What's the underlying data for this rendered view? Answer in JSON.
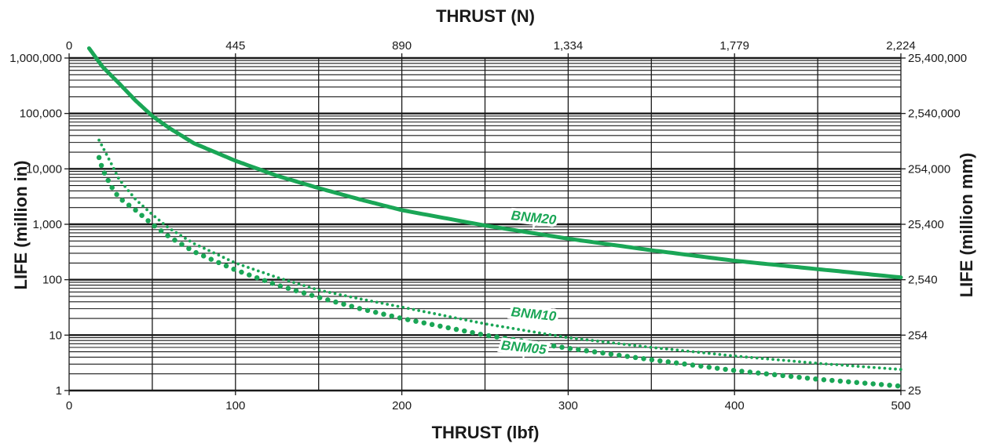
{
  "chart_data": {
    "type": "line",
    "title": "",
    "x_top_label": "THRUST (N)",
    "x_bottom_label": "THRUST (lbf)",
    "y_left_label": "LIFE (million in)",
    "y_right_label": "LIFE (million mm)",
    "x_range_lbf": [
      0,
      500
    ],
    "x_bottom_ticks": [
      {
        "value": 0,
        "label": "0"
      },
      {
        "value": 100,
        "label": "100"
      },
      {
        "value": 200,
        "label": "200"
      },
      {
        "value": 300,
        "label": "300"
      },
      {
        "value": 400,
        "label": "400"
      },
      {
        "value": 500,
        "label": "500"
      }
    ],
    "x_top_ticks": [
      {
        "value": 0,
        "label": "0"
      },
      {
        "value": 100,
        "label": "445"
      },
      {
        "value": 200,
        "label": "890"
      },
      {
        "value": 300,
        "label": "1,334"
      },
      {
        "value": 400,
        "label": "1,779"
      },
      {
        "value": 500,
        "label": "2,224"
      }
    ],
    "y_scale": "log",
    "y_range": [
      1,
      1000000
    ],
    "y_left_ticks": [
      {
        "value": 1,
        "label": "1"
      },
      {
        "value": 10,
        "label": "10"
      },
      {
        "value": 100,
        "label": "100"
      },
      {
        "value": 1000,
        "label": "1,000"
      },
      {
        "value": 10000,
        "label": "10,000"
      },
      {
        "value": 100000,
        "label": "100,000"
      },
      {
        "value": 1000000,
        "label": "1,000,000"
      }
    ],
    "y_right_ticks": [
      {
        "value": 1,
        "label": "25"
      },
      {
        "value": 10,
        "label": "254"
      },
      {
        "value": 100,
        "label": "2,540"
      },
      {
        "value": 1000,
        "label": "25,400"
      },
      {
        "value": 10000,
        "label": "254,000"
      },
      {
        "value": 100000,
        "label": "2,540,000"
      },
      {
        "value": 1000000,
        "label": "25,400,000"
      }
    ],
    "grid": true,
    "curve_color": "#1aa656",
    "series": [
      {
        "name": "BNM20",
        "style": "solid",
        "x": [
          12,
          20,
          30,
          40,
          50,
          60,
          75,
          100,
          125,
          150,
          175,
          200,
          250,
          300,
          350,
          400,
          450,
          500
        ],
        "y": [
          1500000,
          700000,
          350000,
          170000,
          90000,
          55000,
          29000,
          14000,
          7500,
          4500,
          2800,
          1800,
          950,
          550,
          340,
          220,
          155,
          110
        ]
      },
      {
        "name": "BNM10",
        "style": "small-dots",
        "x": [
          18,
          25,
          30,
          40,
          50,
          60,
          75,
          100,
          125,
          150,
          175,
          200,
          250,
          300,
          350,
          400,
          450,
          500
        ],
        "y": [
          33000,
          13000,
          6500,
          2800,
          1500,
          850,
          450,
          200,
          110,
          65,
          45,
          32,
          16,
          9,
          6,
          4.2,
          3.1,
          2.4
        ]
      },
      {
        "name": "BNM05",
        "style": "large-dots",
        "x": [
          18,
          20,
          25,
          30,
          40,
          50,
          60,
          75,
          100,
          125,
          150,
          175,
          200,
          250,
          300,
          350,
          400,
          450,
          500
        ],
        "y": [
          16000,
          10000,
          5000,
          3000,
          1800,
          1000,
          600,
          320,
          150,
          80,
          48,
          30,
          20,
          10,
          5.8,
          3.6,
          2.3,
          1.6,
          1.2
        ]
      }
    ],
    "series_labels": [
      {
        "name": "BNM20",
        "x": 279,
        "y": 1100
      },
      {
        "name": "BNM10",
        "x": 279,
        "y": 20
      },
      {
        "name": "BNM05",
        "x": 273,
        "y": 5
      }
    ]
  }
}
